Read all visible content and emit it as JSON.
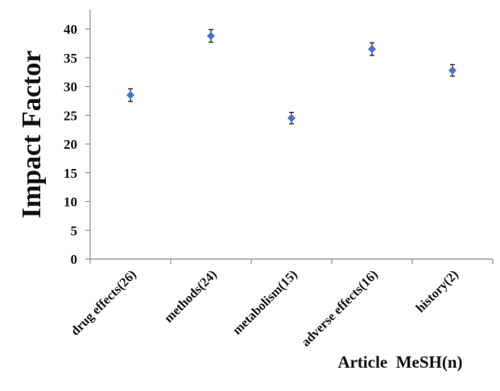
{
  "chart_data": {
    "type": "scatter",
    "categories": [
      "drug effects(26)",
      "methods(24)",
      "metabolism(15)",
      "adverse effects(16)",
      "history(2)"
    ],
    "values": [
      28.5,
      38.8,
      24.5,
      36.5,
      32.8
    ],
    "error": [
      1.1,
      1.1,
      1.0,
      1.1,
      1.0
    ],
    "title": "",
    "xlabel": "Article  MeSH(n)",
    "ylabel": "Impact Factor",
    "ylim": [
      0,
      40
    ],
    "yticks": [
      "0",
      "5",
      "10",
      "15",
      "20",
      "25",
      "30",
      "35",
      "40"
    ],
    "grid": false,
    "marker_color": "#4472c4"
  }
}
